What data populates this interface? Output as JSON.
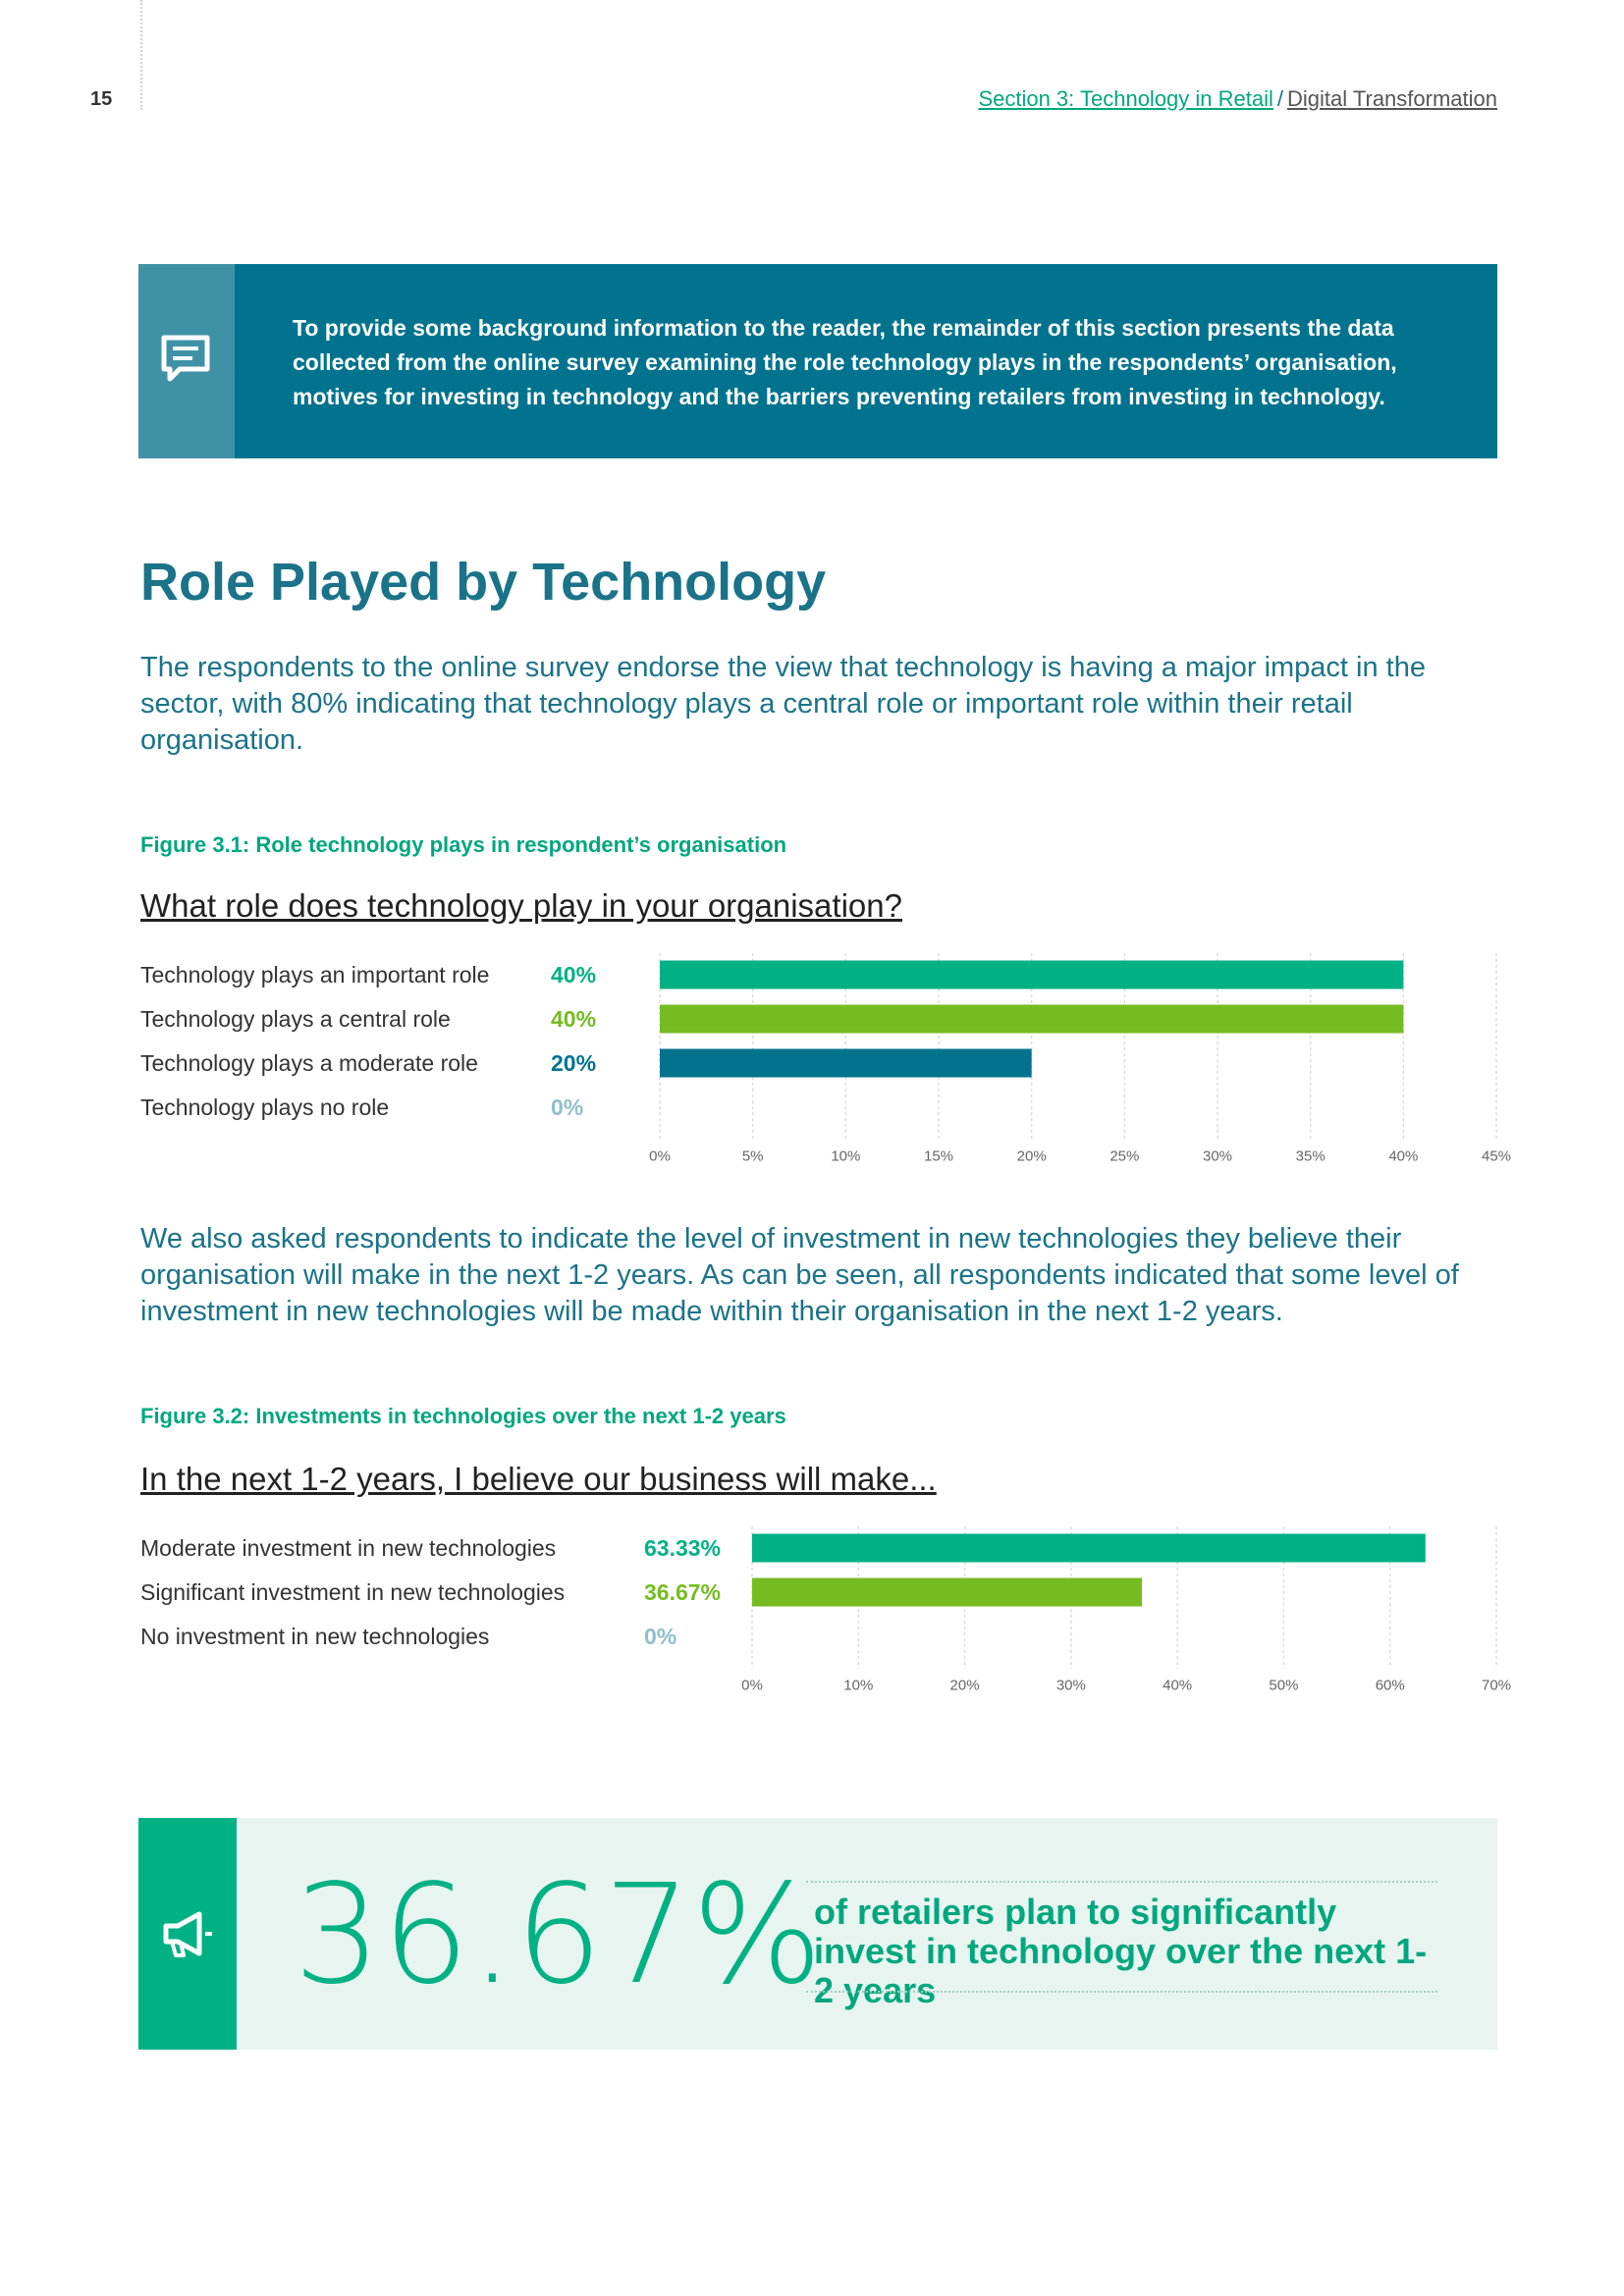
{
  "header": {
    "page_number": "15",
    "breadcrumb_section": "Section 3: Technology in Retail",
    "breadcrumb_separator": "/",
    "breadcrumb_subsection": "Digital Transformation"
  },
  "intro": {
    "icon": "comment-icon",
    "text": "To provide some background information to the reader, the remainder of this section presents the data collected from the online survey examining the role technology plays in the respondents’ organisation, motives for investing in technology and the barriers preventing retailers from investing in technology."
  },
  "section": {
    "title": "Role Played by Technology",
    "paragraph1": "The respondents to the online survey endorse the view that technology is having a major impact in the sector, with 80% indicating that technology plays a central role or important role within their retail organisation.",
    "paragraph2": "We also asked respondents to indicate the level of investment in new technologies they believe their organisation will make in the next 1-2 years. As can be seen, all respondents indicated that some level of investment in new technologies will be made within their organisation in the next 1-2 years."
  },
  "figure1": {
    "caption": "Figure 3.1: Role technology plays in respondent’s organisation",
    "question": "What role does technology play in your organisation?"
  },
  "figure2": {
    "caption": "Figure 3.2: Investments in technologies over the next 1-2 years",
    "question": "In the next 1-2 years, I believe our business will make..."
  },
  "callout": {
    "icon": "megaphone-icon",
    "big_number": "36.67%",
    "text": "of retailers plan to significantly invest in technology over the next 1-2 years"
  },
  "colors": {
    "teal_dark": "#01738e",
    "green": "#00b184",
    "lime": "#76bc21",
    "heading": "#1a7389"
  },
  "chart_data": [
    {
      "type": "bar",
      "orientation": "horizontal",
      "title": "What role does technology play in your organisation?",
      "categories": [
        "Technology plays an important role",
        "Technology plays a central role",
        "Technology plays a moderate role",
        "Technology plays no role"
      ],
      "values": [
        40,
        40,
        20,
        0
      ],
      "value_labels": [
        "40%",
        "40%",
        "20%",
        "0%"
      ],
      "bar_colors": [
        "#00b184",
        "#76bc21",
        "#01738e",
        "#8fbfcc"
      ],
      "xlim": [
        0,
        45
      ],
      "ticks": [
        0,
        5,
        10,
        15,
        20,
        25,
        30,
        35,
        40,
        45
      ],
      "tick_labels": [
        "0%",
        "5%",
        "10%",
        "15%",
        "20%",
        "25%",
        "30%",
        "35%",
        "40%",
        "45%"
      ],
      "grid": true
    },
    {
      "type": "bar",
      "orientation": "horizontal",
      "title": "In the next 1-2 years, I believe our business will make...",
      "categories": [
        "Moderate investment in new technologies",
        "Significant investment in new technologies",
        "No investment in new technologies"
      ],
      "values": [
        63.33,
        36.67,
        0
      ],
      "value_labels": [
        "63.33%",
        "36.67%",
        "0%"
      ],
      "bar_colors": [
        "#00b184",
        "#76bc21",
        "#8fbfcc"
      ],
      "xlim": [
        0,
        70
      ],
      "ticks": [
        0,
        10,
        20,
        30,
        40,
        50,
        60,
        70
      ],
      "tick_labels": [
        "0%",
        "10%",
        "20%",
        "30%",
        "40%",
        "50%",
        "60%",
        "70%"
      ],
      "grid": true
    }
  ]
}
